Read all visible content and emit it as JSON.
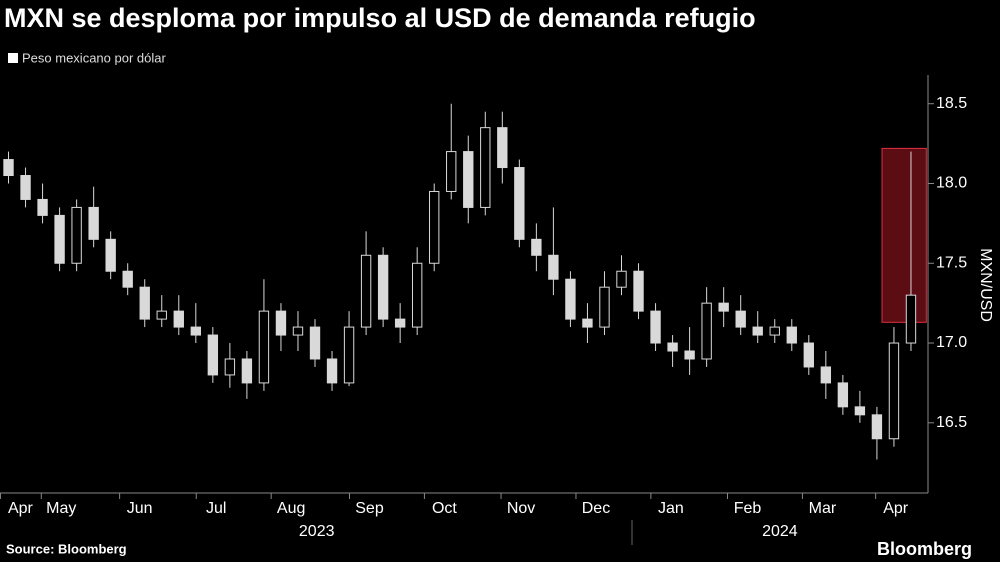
{
  "chart_data": {
    "type": "candlestick",
    "title": "MXN se desploma por impulso al USD de demanda refugio",
    "legend": "Peso mexicano por dólar",
    "ylabel": "MXN/USD",
    "source": "Source: Bloomberg",
    "brand": "Bloomberg",
    "color": "#d9d9d9",
    "x": [
      0,
      1,
      2,
      3,
      4,
      5,
      6,
      7,
      8,
      9,
      10,
      11,
      12,
      13,
      14,
      15,
      16,
      17,
      18,
      19,
      20,
      21,
      22,
      23,
      24,
      25,
      26,
      27,
      28,
      29,
      30,
      31,
      32,
      33,
      34,
      35,
      36,
      37,
      38,
      39,
      40,
      41,
      42,
      43,
      44,
      45,
      46,
      47,
      48,
      49,
      50,
      51,
      52,
      53
    ],
    "open": [
      18.15,
      18.05,
      17.9,
      17.8,
      17.5,
      17.85,
      17.65,
      17.45,
      17.35,
      17.15,
      17.2,
      17.1,
      17.05,
      16.8,
      16.9,
      16.75,
      17.2,
      17.05,
      17.1,
      16.9,
      16.75,
      17.1,
      17.55,
      17.15,
      17.1,
      17.5,
      17.95,
      18.2,
      17.85,
      18.35,
      18.1,
      17.65,
      17.55,
      17.4,
      17.15,
      17.1,
      17.35,
      17.45,
      17.2,
      17.0,
      16.95,
      16.9,
      17.25,
      17.2,
      17.1,
      17.05,
      17.1,
      17.0,
      16.85,
      16.75,
      16.6,
      16.55,
      16.4,
      17.0
    ],
    "high": [
      18.2,
      18.1,
      18.0,
      17.85,
      17.9,
      17.98,
      17.7,
      17.5,
      17.4,
      17.3,
      17.3,
      17.25,
      17.1,
      17.0,
      16.95,
      17.4,
      17.25,
      17.2,
      17.15,
      16.95,
      17.2,
      17.7,
      17.6,
      17.25,
      17.6,
      18.0,
      18.5,
      18.3,
      18.45,
      18.45,
      18.15,
      17.75,
      17.85,
      17.45,
      17.25,
      17.45,
      17.55,
      17.5,
      17.25,
      17.05,
      17.1,
      17.35,
      17.35,
      17.3,
      17.2,
      17.15,
      17.15,
      17.05,
      16.95,
      16.8,
      16.7,
      16.6,
      17.1,
      18.2
    ],
    "low": [
      18.0,
      17.85,
      17.75,
      17.45,
      17.45,
      17.6,
      17.4,
      17.3,
      17.1,
      17.1,
      17.05,
      17.0,
      16.75,
      16.72,
      16.65,
      16.7,
      16.95,
      16.95,
      16.85,
      16.7,
      16.73,
      17.05,
      17.1,
      17.0,
      17.05,
      17.45,
      17.9,
      17.75,
      17.8,
      18.0,
      17.6,
      17.45,
      17.3,
      17.1,
      17.0,
      17.05,
      17.3,
      17.15,
      16.95,
      16.85,
      16.8,
      16.85,
      17.1,
      17.05,
      17.0,
      17.0,
      16.95,
      16.8,
      16.65,
      16.55,
      16.5,
      16.27,
      16.35,
      16.95
    ],
    "close": [
      18.05,
      17.9,
      17.8,
      17.5,
      17.85,
      17.65,
      17.45,
      17.35,
      17.15,
      17.2,
      17.1,
      17.05,
      16.8,
      16.9,
      16.75,
      17.2,
      17.05,
      17.1,
      16.9,
      16.75,
      17.1,
      17.55,
      17.15,
      17.1,
      17.5,
      17.95,
      18.2,
      17.85,
      18.35,
      18.1,
      17.65,
      17.55,
      17.4,
      17.15,
      17.1,
      17.35,
      17.45,
      17.2,
      17.0,
      16.95,
      16.9,
      17.25,
      17.2,
      17.1,
      17.05,
      17.1,
      17.0,
      16.85,
      16.75,
      16.6,
      16.55,
      16.4,
      17.0,
      17.3
    ],
    "xlim": [
      -0.5,
      54
    ],
    "ylim": [
      16.06,
      18.68
    ],
    "yticks": [
      16.5,
      {
        "value": 17,
        "label": "17.0"
      },
      17.5,
      {
        "value": 18,
        "label": "18.0"
      },
      18.5
    ],
    "xticks": [
      {
        "value": 0.7,
        "label": "Apr"
      },
      {
        "value": 3.1,
        "label": "May"
      },
      {
        "value": 7.7,
        "label": "Jun"
      },
      {
        "value": 12.2,
        "label": "Jul"
      },
      {
        "value": 16.6,
        "label": "Aug"
      },
      {
        "value": 21.2,
        "label": "Sep"
      },
      {
        "value": 25.6,
        "label": "Oct"
      },
      {
        "value": 30.1,
        "label": "Nov"
      },
      {
        "value": 34.5,
        "label": "Dec"
      },
      {
        "value": 38.9,
        "label": "Jan"
      },
      {
        "value": 43.4,
        "label": "Feb"
      },
      {
        "value": 47.8,
        "label": "Mar"
      },
      {
        "value": 52.1,
        "label": "Apr"
      }
    ],
    "xgroups": [
      {
        "value": 18.1,
        "label": "2023"
      },
      {
        "value": 45.3,
        "label": "2024"
      }
    ],
    "highlight": {
      "x": [
        51.3,
        53.9
      ],
      "y": [
        17.13,
        18.22
      ],
      "color": "#6b0f16"
    }
  }
}
